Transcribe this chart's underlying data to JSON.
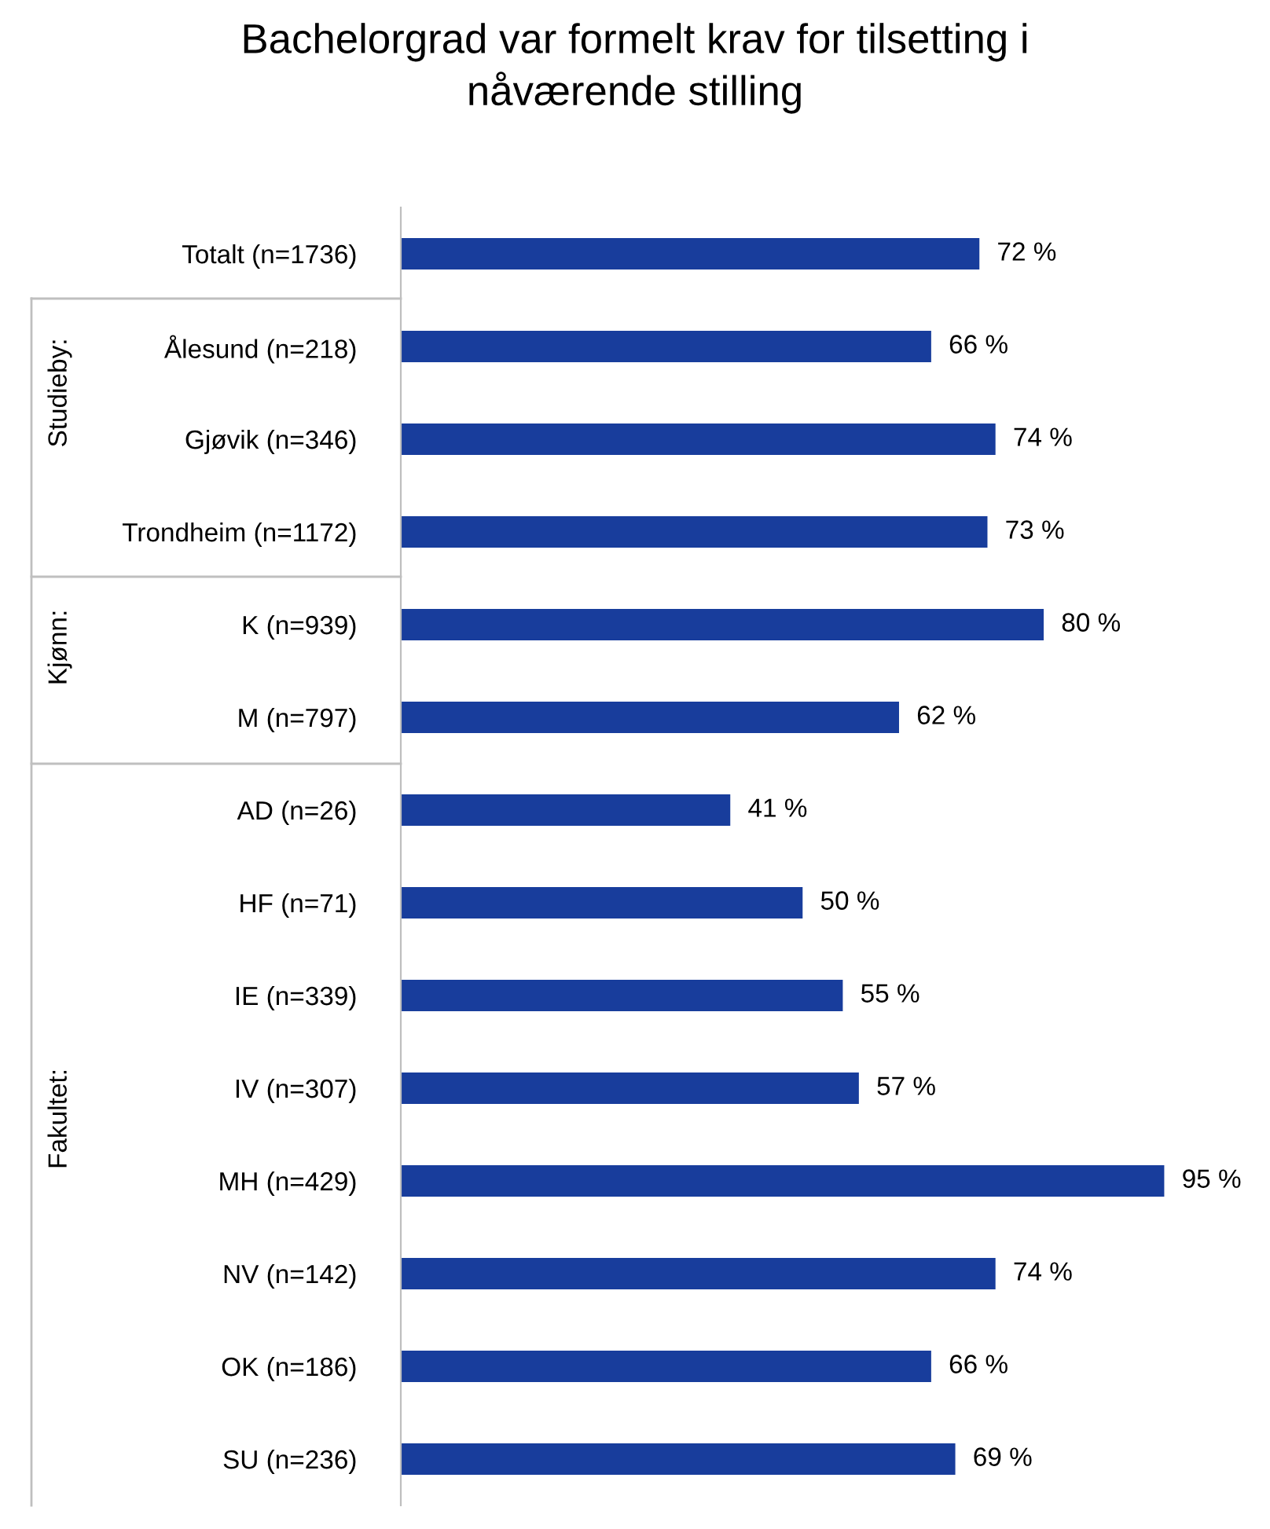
{
  "chart_data": {
    "type": "bar",
    "orientation": "horizontal",
    "title": "Bachelorgrad var formelt krav for tilsetting i\nnåværende stilling",
    "categories": [
      "Totalt (n=1736)",
      "Ålesund (n=218)",
      "Gjøvik (n=346)",
      "Trondheim (n=1172)",
      "K (n=939)",
      "M (n=797)",
      "AD (n=26)",
      "HF (n=71)",
      "IE (n=339)",
      "IV (n=307)",
      "MH (n=429)",
      "NV (n=142)",
      "OK (n=186)",
      "SU (n=236)"
    ],
    "values": [
      72,
      66,
      74,
      73,
      80,
      62,
      41,
      50,
      55,
      57,
      95,
      74,
      66,
      69
    ],
    "value_labels": [
      "72 %",
      "66 %",
      "74 %",
      "73 %",
      "80 %",
      "62 %",
      "41 %",
      "50 %",
      "55 %",
      "57 %",
      "95 %",
      "74 %",
      "66 %",
      "69 %"
    ],
    "color": "#183d9c",
    "annotations": [
      "Studieby:",
      "Kjønn:",
      "Fakultet:"
    ],
    "grid": false,
    "legend": false
  }
}
